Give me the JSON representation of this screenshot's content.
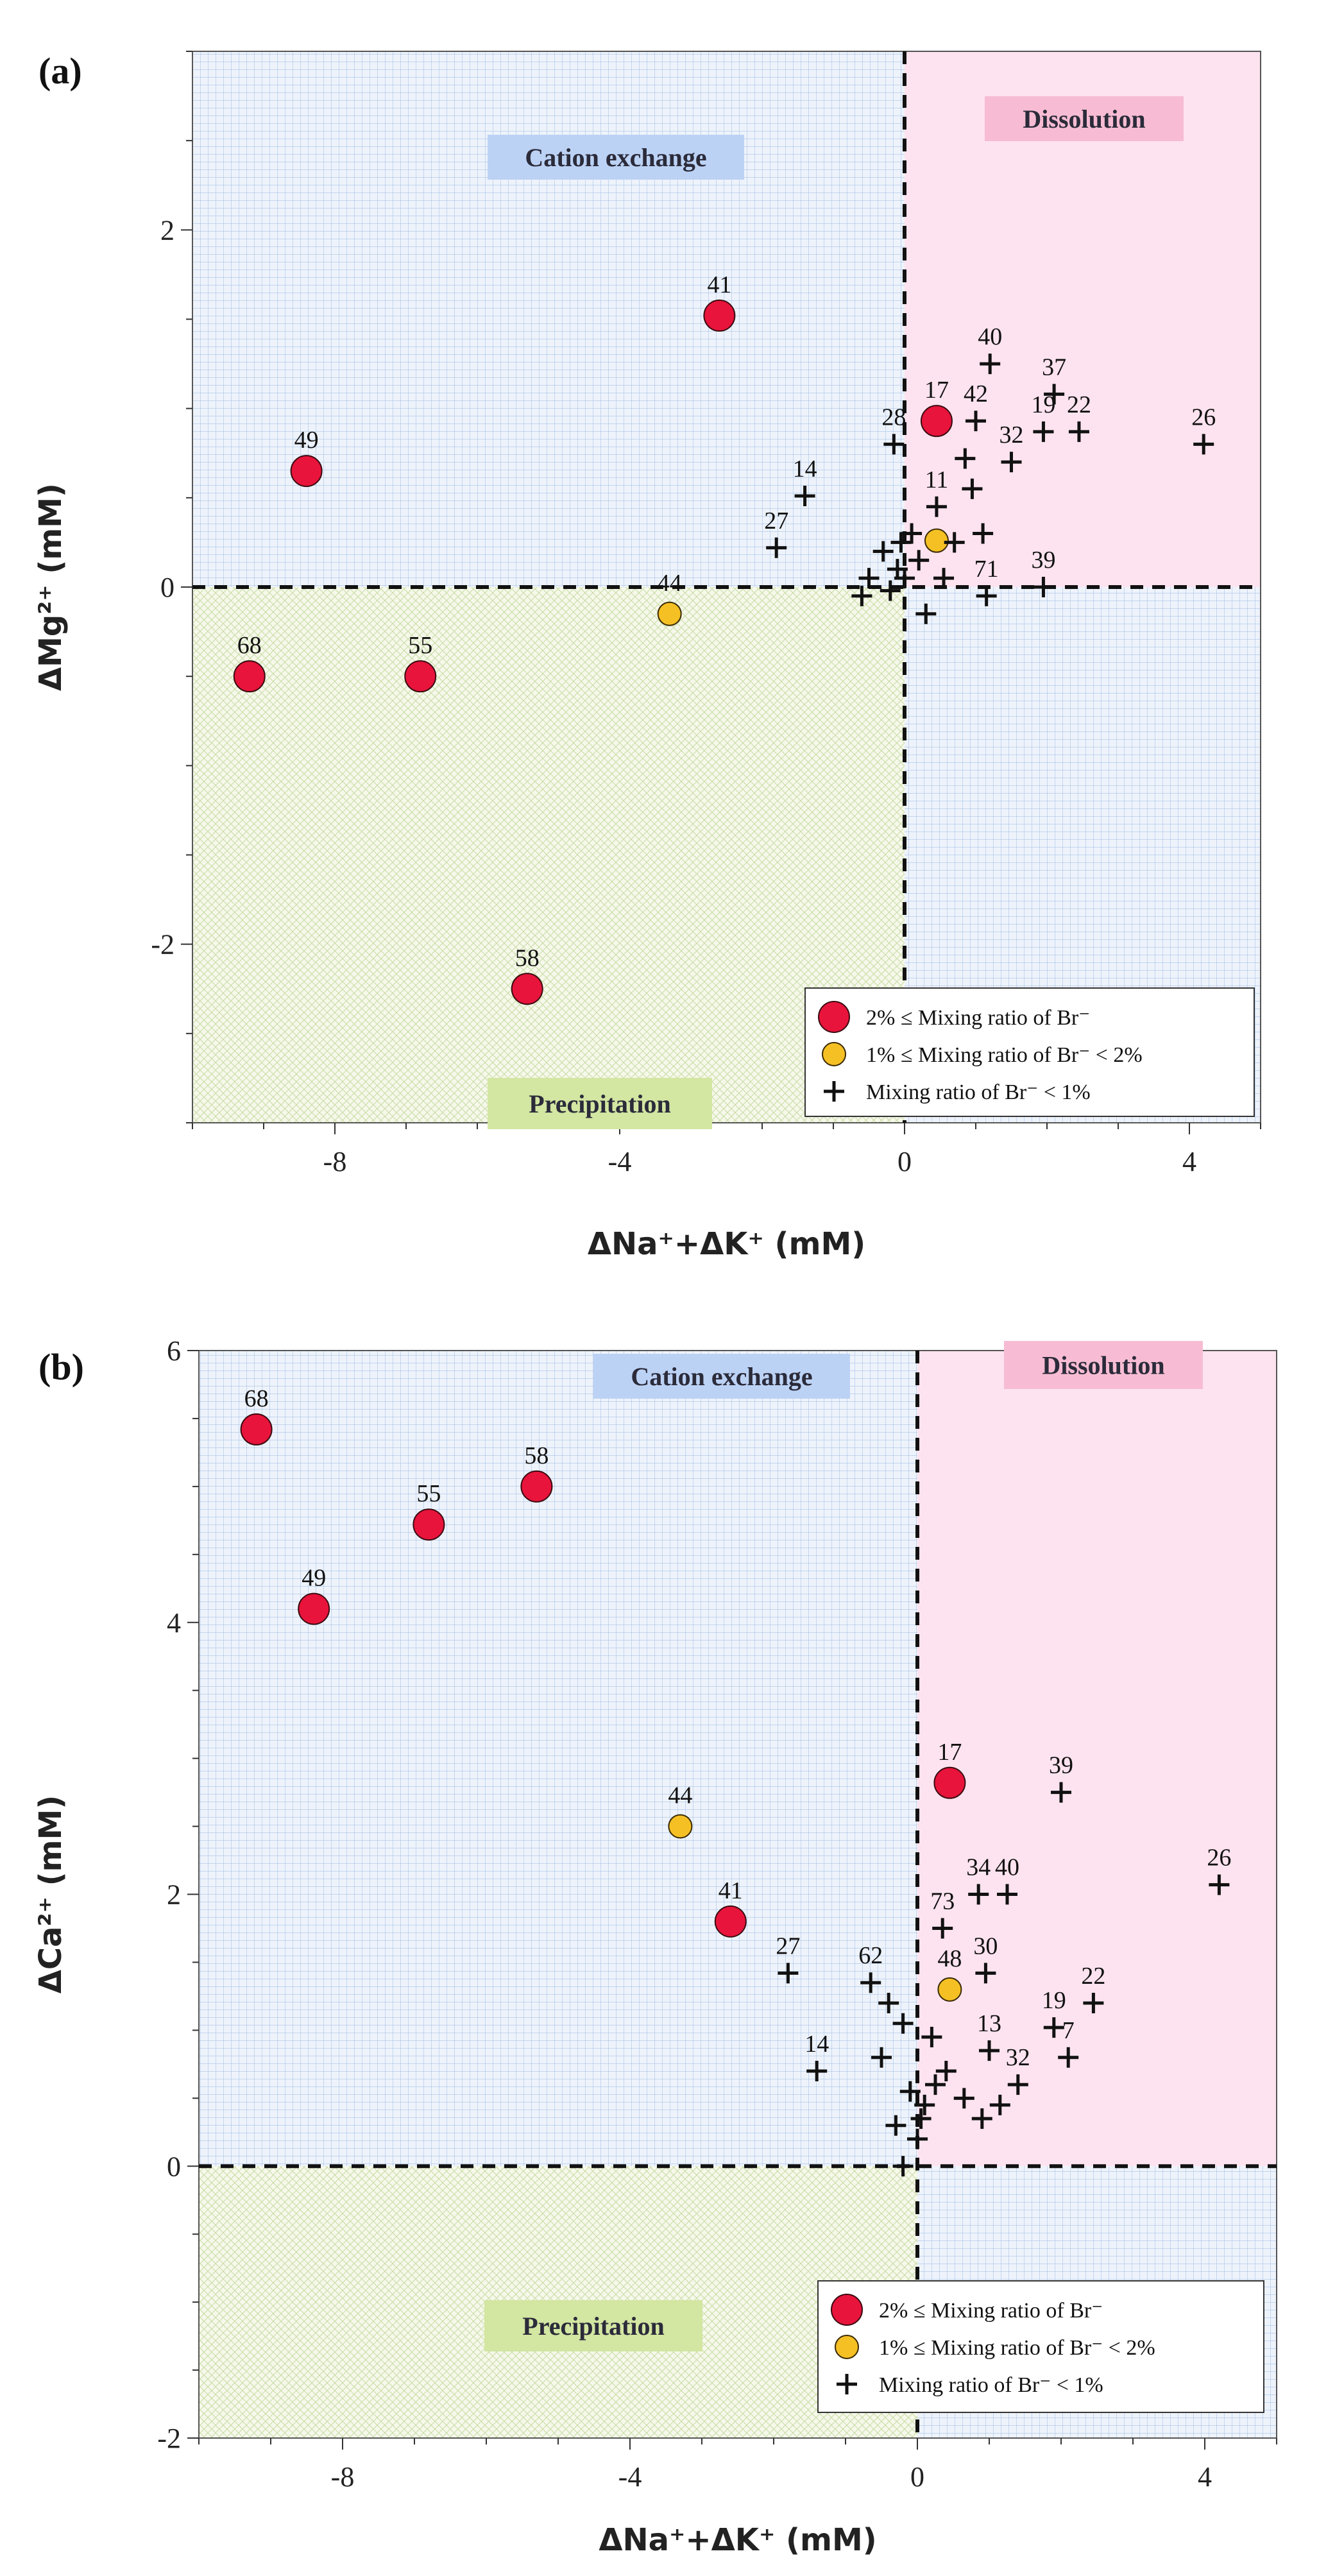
{
  "chart_data": [
    {
      "type": "scatter",
      "panel_label": "(a)",
      "xlabel": "ΔNa⁺+ΔK⁺ (mM)",
      "ylabel": "ΔMg²⁺ (mM)",
      "xlim": [
        -10,
        5
      ],
      "ylim": [
        -3,
        3
      ],
      "xticks": [
        -8,
        -4,
        0,
        4
      ],
      "yticks": [
        -2,
        0,
        2
      ],
      "regions": {
        "cation_exchange": "Cation exchange",
        "dissolution": "Dissolution",
        "precipitation": "Precipitation"
      },
      "legend": {
        "position": "bottom-right",
        "entries": [
          {
            "marker": "red-circle",
            "text": "2% ≤ Mixing ratio of Br⁻"
          },
          {
            "marker": "yellow-circle",
            "text": "1% ≤ Mixing ratio of Br⁻ < 2%"
          },
          {
            "marker": "plus",
            "text": "Mixing ratio of Br⁻ < 1%"
          }
        ]
      },
      "series": [
        {
          "marker": "red-circle",
          "points": [
            {
              "label": "41",
              "x": -2.6,
              "y": 1.52
            },
            {
              "label": "49",
              "x": -8.4,
              "y": 0.65
            },
            {
              "label": "68",
              "x": -9.2,
              "y": -0.5
            },
            {
              "label": "55",
              "x": -6.8,
              "y": -0.5
            },
            {
              "label": "58",
              "x": -5.3,
              "y": -2.25
            },
            {
              "label": "17",
              "x": 0.45,
              "y": 0.93
            }
          ]
        },
        {
          "marker": "yellow-circle",
          "points": [
            {
              "label": "44",
              "x": -3.3,
              "y": -0.15
            },
            {
              "label": "",
              "x": 0.45,
              "y": 0.26
            }
          ]
        },
        {
          "marker": "plus",
          "points": [
            {
              "label": "40",
              "x": 1.2,
              "y": 1.25
            },
            {
              "label": "37",
              "x": 2.1,
              "y": 1.08
            },
            {
              "label": "19",
              "x": 1.95,
              "y": 0.87
            },
            {
              "label": "22",
              "x": 2.45,
              "y": 0.87
            },
            {
              "label": "26",
              "x": 4.2,
              "y": 0.8
            },
            {
              "label": "42",
              "x": 1.0,
              "y": 0.93
            },
            {
              "label": "32",
              "x": 1.5,
              "y": 0.7
            },
            {
              "label": "28",
              "x": -0.15,
              "y": 0.8
            },
            {
              "label": "14",
              "x": -1.4,
              "y": 0.51
            },
            {
              "label": "27",
              "x": -1.8,
              "y": 0.22
            },
            {
              "label": "39",
              "x": 1.95,
              "y": 0.0
            },
            {
              "label": "71",
              "x": 1.15,
              "y": -0.05
            },
            {
              "label": "11",
              "x": 0.45,
              "y": 0.45
            },
            {
              "label": "",
              "x": 0.85,
              "y": 0.72
            },
            {
              "label": "",
              "x": 0.95,
              "y": 0.55
            },
            {
              "label": "",
              "x": 1.1,
              "y": 0.3
            },
            {
              "label": "",
              "x": 0.7,
              "y": 0.25
            },
            {
              "label": "",
              "x": -0.3,
              "y": 0.2
            },
            {
              "label": "",
              "x": -0.1,
              "y": 0.1
            },
            {
              "label": "",
              "x": 0.1,
              "y": 0.3
            },
            {
              "label": "",
              "x": -0.2,
              "y": -0.02
            },
            {
              "label": "",
              "x": 0.0,
              "y": 0.05
            },
            {
              "label": "",
              "x": -0.5,
              "y": 0.05
            },
            {
              "label": "",
              "x": -0.6,
              "y": -0.05
            },
            {
              "label": "",
              "x": 0.3,
              "y": -0.15
            },
            {
              "label": "",
              "x": 0.2,
              "y": 0.15
            },
            {
              "label": "",
              "x": -0.05,
              "y": 0.25
            },
            {
              "label": "",
              "x": 0.55,
              "y": 0.05
            }
          ]
        }
      ]
    },
    {
      "type": "scatter",
      "panel_label": "(b)",
      "xlabel": "ΔNa⁺+ΔK⁺ (mM)",
      "ylabel": "ΔCa²⁺ (mM)",
      "xlim": [
        -10,
        5
      ],
      "ylim": [
        -2,
        6
      ],
      "xticks": [
        -8,
        -4,
        0,
        4
      ],
      "yticks": [
        -2,
        0,
        2,
        4,
        6
      ],
      "regions": {
        "cation_exchange": "Cation exchange",
        "dissolution": "Dissolution",
        "precipitation": "Precipitation"
      },
      "legend": {
        "position": "bottom-right",
        "entries": [
          {
            "marker": "red-circle",
            "text": "2% ≤ Mixing ratio of Br⁻"
          },
          {
            "marker": "yellow-circle",
            "text": "1% ≤ Mixing ratio of Br⁻ < 2%"
          },
          {
            "marker": "plus",
            "text": "Mixing ratio of Br⁻ < 1%"
          }
        ]
      },
      "series": [
        {
          "marker": "red-circle",
          "points": [
            {
              "label": "68",
              "x": -9.2,
              "y": 5.42
            },
            {
              "label": "55",
              "x": -6.8,
              "y": 4.72
            },
            {
              "label": "58",
              "x": -5.3,
              "y": 5.0
            },
            {
              "label": "49",
              "x": -8.4,
              "y": 4.1
            },
            {
              "label": "41",
              "x": -2.6,
              "y": 1.8
            },
            {
              "label": "17",
              "x": 0.45,
              "y": 2.82
            }
          ]
        },
        {
          "marker": "yellow-circle",
          "points": [
            {
              "label": "44",
              "x": -3.3,
              "y": 2.5
            },
            {
              "label": "48",
              "x": 0.45,
              "y": 1.3
            }
          ]
        },
        {
          "marker": "plus",
          "points": [
            {
              "label": "39",
              "x": 2.0,
              "y": 2.75
            },
            {
              "label": "26",
              "x": 4.2,
              "y": 2.07
            },
            {
              "label": "34",
              "x": 0.85,
              "y": 2.0
            },
            {
              "label": "40",
              "x": 1.25,
              "y": 2.0
            },
            {
              "label": "73",
              "x": 0.35,
              "y": 1.75
            },
            {
              "label": "30",
              "x": 0.95,
              "y": 1.42
            },
            {
              "label": "22",
              "x": 2.45,
              "y": 1.2
            },
            {
              "label": "19",
              "x": 1.9,
              "y": 1.02
            },
            {
              "label": "7",
              "x": 2.1,
              "y": 0.8
            },
            {
              "label": "13",
              "x": 1.0,
              "y": 0.85
            },
            {
              "label": "32",
              "x": 1.4,
              "y": 0.6
            },
            {
              "label": "27",
              "x": -1.8,
              "y": 1.42
            },
            {
              "label": "14",
              "x": -1.4,
              "y": 0.7
            },
            {
              "label": "62",
              "x": -0.65,
              "y": 1.35
            },
            {
              "label": "",
              "x": -0.4,
              "y": 1.2
            },
            {
              "label": "",
              "x": -0.2,
              "y": 1.05
            },
            {
              "label": "",
              "x": -0.5,
              "y": 0.8
            },
            {
              "label": "",
              "x": -0.3,
              "y": 0.3
            },
            {
              "label": "",
              "x": -0.2,
              "y": 0.0
            },
            {
              "label": "",
              "x": 0.0,
              "y": 0.2
            },
            {
              "label": "",
              "x": 0.1,
              "y": 0.45
            },
            {
              "label": "",
              "x": 0.25,
              "y": 0.6
            },
            {
              "label": "",
              "x": 0.4,
              "y": 0.7
            },
            {
              "label": "",
              "x": 0.2,
              "y": 0.95
            },
            {
              "label": "",
              "x": -0.1,
              "y": 0.55
            },
            {
              "label": "",
              "x": 0.65,
              "y": 0.5
            },
            {
              "label": "",
              "x": 0.9,
              "y": 0.35
            },
            {
              "label": "",
              "x": 1.15,
              "y": 0.45
            },
            {
              "label": "",
              "x": 0.05,
              "y": 0.35
            }
          ]
        }
      ]
    }
  ]
}
